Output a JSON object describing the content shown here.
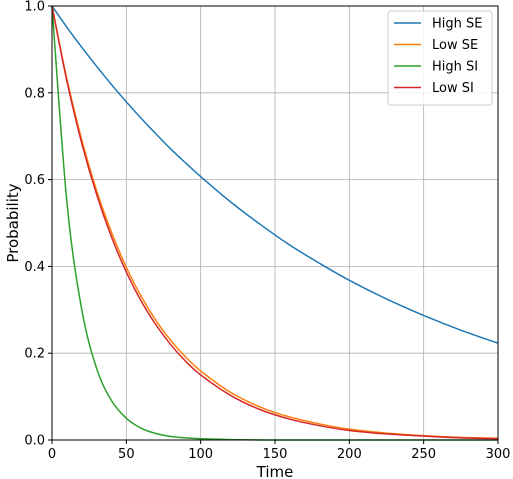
{
  "chart_data": {
    "type": "line",
    "title": "",
    "xlabel": "Time",
    "ylabel": "Probability",
    "xlim": [
      0,
      300
    ],
    "ylim": [
      0,
      1.0
    ],
    "xticks": [
      "0",
      "50",
      "100",
      "150",
      "200",
      "250",
      "300"
    ],
    "yticks": [
      "0.0",
      "0.2",
      "0.4",
      "0.6",
      "0.8",
      "1.0"
    ],
    "grid": true,
    "legend_position": "top-right",
    "x": [
      0,
      10,
      20,
      30,
      40,
      50,
      60,
      70,
      80,
      90,
      100,
      120,
      140,
      160,
      180,
      200,
      225,
      250,
      275,
      300
    ],
    "series": [
      {
        "name": "High SE",
        "color": "#1f77b4",
        "values": [
          1.0,
          0.951,
          0.905,
          0.861,
          0.819,
          0.779,
          0.741,
          0.705,
          0.67,
          0.638,
          0.607,
          0.549,
          0.497,
          0.449,
          0.407,
          0.368,
          0.325,
          0.287,
          0.253,
          0.223
        ]
      },
      {
        "name": "Low SE",
        "color": "#ff7f0e",
        "values": [
          1.0,
          0.832,
          0.692,
          0.575,
          0.479,
          0.398,
          0.331,
          0.275,
          0.229,
          0.191,
          0.159,
          0.11,
          0.076,
          0.053,
          0.037,
          0.025,
          0.016,
          0.01,
          0.006,
          0.004
        ]
      },
      {
        "name": "High SI",
        "color": "#2ca02c",
        "values": [
          1.0,
          0.549,
          0.301,
          0.165,
          0.091,
          0.05,
          0.027,
          0.015,
          0.008,
          0.005,
          0.003,
          0.001,
          0.0,
          0.0,
          0.0,
          0.0,
          0.0,
          0.0,
          0.0,
          0.0
        ]
      },
      {
        "name": "Low SI",
        "color": "#d62728",
        "values": [
          1.0,
          0.827,
          0.684,
          0.566,
          0.468,
          0.387,
          0.32,
          0.265,
          0.219,
          0.181,
          0.15,
          0.103,
          0.07,
          0.048,
          0.033,
          0.022,
          0.014,
          0.009,
          0.005,
          0.003
        ]
      }
    ]
  }
}
